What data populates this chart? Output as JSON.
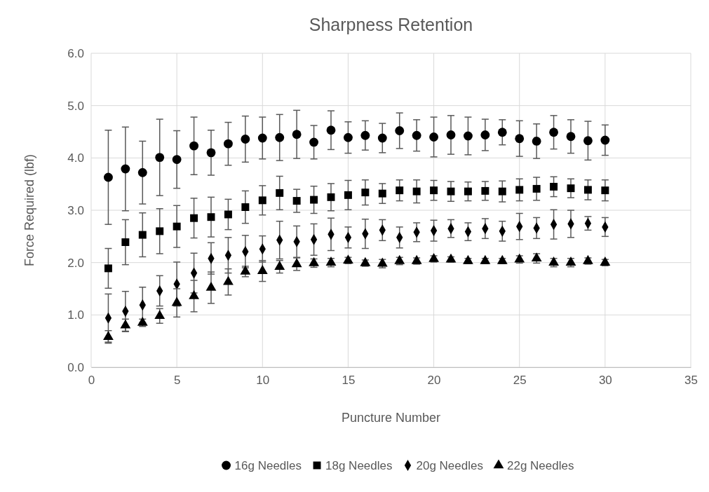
{
  "chart_data": {
    "type": "scatter",
    "title": "Sharpness Retention",
    "xlabel": "Puncture Number",
    "ylabel": "Force Required (lbf)",
    "x": [
      1,
      2,
      3,
      4,
      5,
      6,
      7,
      8,
      9,
      10,
      11,
      12,
      13,
      14,
      15,
      16,
      17,
      18,
      19,
      20,
      21,
      22,
      23,
      24,
      25,
      26,
      27,
      28,
      29,
      30
    ],
    "xlim": [
      0,
      35
    ],
    "xticks": [
      0,
      5,
      10,
      15,
      20,
      25,
      30,
      35
    ],
    "ylim": [
      0,
      6
    ],
    "yticks": [
      {
        "value": 0,
        "label": "0.0"
      },
      {
        "value": 1,
        "label": "1.0"
      },
      {
        "value": 2,
        "label": "2.0"
      },
      {
        "value": 3,
        "label": "3.0"
      },
      {
        "value": 4,
        "label": "4.0"
      },
      {
        "value": 5,
        "label": "5.0"
      },
      {
        "value": 6,
        "label": "6.0"
      }
    ],
    "grid": true,
    "legend": "bottom",
    "series": [
      {
        "name": "16g Needles",
        "color": "#000000",
        "marker": "circle",
        "values": [
          3.63,
          3.79,
          3.72,
          4.01,
          3.97,
          4.23,
          4.1,
          4.27,
          4.36,
          4.38,
          4.39,
          4.45,
          4.3,
          4.53,
          4.39,
          4.43,
          4.38,
          4.52,
          4.43,
          4.4,
          4.44,
          4.42,
          4.44,
          4.49,
          4.37,
          4.32,
          4.49,
          4.41,
          4.33,
          4.34
        ],
        "errors": [
          0.9,
          0.8,
          0.6,
          0.73,
          0.55,
          0.55,
          0.43,
          0.41,
          0.44,
          0.4,
          0.44,
          0.46,
          0.32,
          0.37,
          0.3,
          0.28,
          0.28,
          0.34,
          0.3,
          0.38,
          0.37,
          0.36,
          0.3,
          0.24,
          0.34,
          0.33,
          0.32,
          0.32,
          0.37,
          0.29
        ]
      },
      {
        "name": "18g Needles",
        "color": "#000000",
        "marker": "square",
        "values": [
          1.89,
          2.39,
          2.53,
          2.6,
          2.69,
          2.85,
          2.87,
          2.92,
          3.06,
          3.19,
          3.33,
          3.18,
          3.2,
          3.25,
          3.29,
          3.34,
          3.32,
          3.38,
          3.36,
          3.38,
          3.36,
          3.36,
          3.37,
          3.36,
          3.39,
          3.41,
          3.45,
          3.42,
          3.39,
          3.38
        ],
        "errors": [
          0.38,
          0.43,
          0.42,
          0.43,
          0.4,
          0.38,
          0.38,
          0.29,
          0.31,
          0.28,
          0.32,
          0.22,
          0.26,
          0.26,
          0.28,
          0.24,
          0.19,
          0.2,
          0.22,
          0.19,
          0.19,
          0.18,
          0.18,
          0.2,
          0.21,
          0.22,
          0.19,
          0.18,
          0.19,
          0.2
        ]
      },
      {
        "name": "20g Needles",
        "color": "#000000",
        "marker": "diamond",
        "values": [
          0.94,
          1.07,
          1.19,
          1.46,
          1.59,
          1.8,
          2.08,
          2.14,
          2.21,
          2.26,
          2.43,
          2.4,
          2.44,
          2.54,
          2.48,
          2.55,
          2.62,
          2.48,
          2.58,
          2.61,
          2.65,
          2.59,
          2.65,
          2.6,
          2.69,
          2.66,
          2.73,
          2.74,
          2.75,
          2.68
        ],
        "errors": [
          0.46,
          0.38,
          0.34,
          0.29,
          0.42,
          0.38,
          0.3,
          0.34,
          0.31,
          0.25,
          0.36,
          0.3,
          0.3,
          0.31,
          0.2,
          0.28,
          0.2,
          0.2,
          0.18,
          0.2,
          0.17,
          0.17,
          0.19,
          0.19,
          0.25,
          0.2,
          0.28,
          0.26,
          0.13,
          0.18
        ]
      },
      {
        "name": "22g Needles",
        "color": "#000000",
        "marker": "triangle",
        "values": [
          0.58,
          0.8,
          0.85,
          0.98,
          1.23,
          1.36,
          1.52,
          1.63,
          1.83,
          1.84,
          1.92,
          1.97,
          1.99,
          2.0,
          2.04,
          1.99,
          1.98,
          2.03,
          2.03,
          2.07,
          2.06,
          2.03,
          2.03,
          2.03,
          2.06,
          2.08,
          2.0,
          2.0,
          2.03,
          2.0
        ],
        "errors": [
          0.12,
          0.12,
          0.07,
          0.14,
          0.27,
          0.3,
          0.3,
          0.25,
          0.1,
          0.2,
          0.12,
          0.12,
          0.08,
          0.08,
          0.06,
          0.06,
          0.08,
          0.07,
          0.06,
          0.06,
          0.05,
          0.05,
          0.05,
          0.05,
          0.07,
          0.09,
          0.08,
          0.08,
          0.06,
          0.06
        ]
      }
    ]
  }
}
